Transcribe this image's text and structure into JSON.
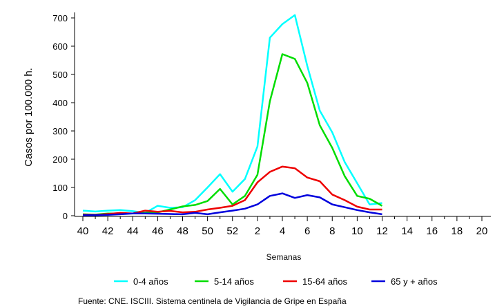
{
  "chart_data": {
    "type": "line",
    "xlabel": "Semanas",
    "ylabel": "Casos por 100.000 h.",
    "ylim": [
      0,
      700
    ],
    "yticks": [
      0,
      100,
      200,
      300,
      400,
      500,
      600,
      700
    ],
    "x_tick_labels": [
      "40",
      "42",
      "44",
      "46",
      "48",
      "50",
      "52",
      "2",
      "4",
      "6",
      "8",
      "10",
      "12",
      "14",
      "16",
      "18",
      "20"
    ],
    "x_tick_positions": [
      0,
      2,
      4,
      6,
      8,
      10,
      12,
      14,
      16,
      18,
      20,
      22,
      24,
      26,
      28,
      30,
      32
    ],
    "x_range": [
      0,
      32
    ],
    "legend_position": "bottom",
    "grid": false,
    "weeks": [
      "40",
      "41",
      "42",
      "43",
      "44",
      "45",
      "46",
      "47",
      "48",
      "49",
      "50",
      "51",
      "52",
      "1",
      "2",
      "3",
      "4",
      "5",
      "6",
      "7",
      "8",
      "9",
      "10",
      "11",
      "12"
    ],
    "series": [
      {
        "name": "0-4 años",
        "color": "#00ffff",
        "values": [
          18,
          15,
          18,
          20,
          16,
          10,
          35,
          28,
          30,
          55,
          100,
          147,
          85,
          130,
          245,
          630,
          678,
          710,
          530,
          372,
          295,
          190,
          115,
          40,
          45
        ]
      },
      {
        "name": "5-14 años",
        "color": "#00dd00",
        "values": [
          5,
          4,
          8,
          8,
          8,
          10,
          12,
          22,
          33,
          38,
          52,
          95,
          40,
          70,
          145,
          405,
          572,
          555,
          470,
          320,
          240,
          140,
          70,
          60,
          35
        ]
      },
      {
        "name": "15-64 años",
        "color": "#ee0000",
        "values": [
          4,
          3,
          6,
          10,
          8,
          18,
          14,
          17,
          12,
          14,
          22,
          28,
          35,
          55,
          118,
          155,
          174,
          168,
          135,
          122,
          75,
          55,
          32,
          22,
          22
        ]
      },
      {
        "name": "65 y + años",
        "color": "#0000dd",
        "values": [
          2,
          2,
          3,
          5,
          8,
          8,
          7,
          6,
          5,
          10,
          5,
          12,
          18,
          25,
          40,
          70,
          79,
          63,
          73,
          65,
          40,
          30,
          20,
          12,
          5
        ]
      }
    ]
  },
  "source_text": "Fuente: CNE. ISCIII. Sistema centinela de Vigilancia de Gripe en España"
}
